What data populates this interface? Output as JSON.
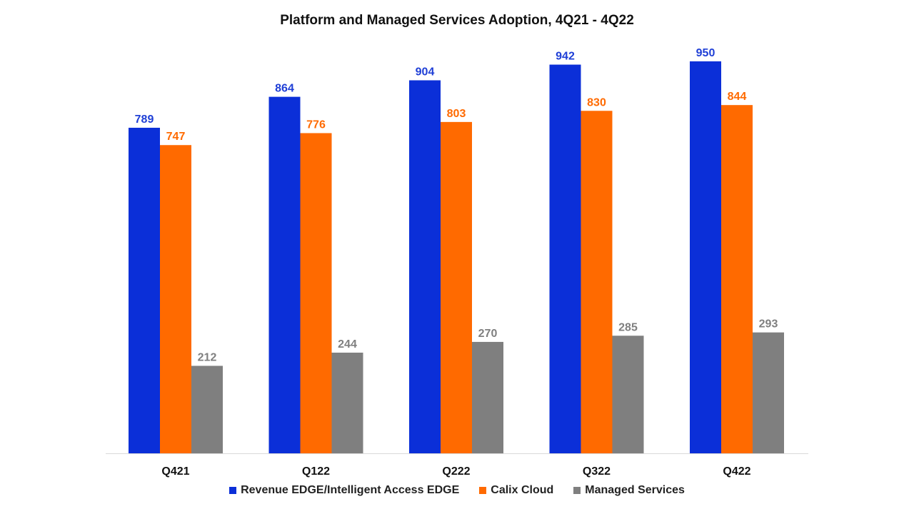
{
  "chart_data": {
    "type": "bar",
    "title": "Platform and Managed Services Adoption, 4Q21 - 4Q22",
    "xlabel": "",
    "ylabel": "",
    "categories": [
      "Q421",
      "Q122",
      "Q222",
      "Q322",
      "Q422"
    ],
    "series": [
      {
        "name": "Revenue EDGE/Intelligent Access EDGE",
        "color": "#0b2fd8",
        "label_color": "#1f3fd6",
        "values": [
          789,
          864,
          904,
          942,
          950
        ]
      },
      {
        "name": "Calix Cloud",
        "color": "#ff6a00",
        "label_color": "#ff6a00",
        "values": [
          747,
          776,
          803,
          830,
          844
        ]
      },
      {
        "name": "Managed Services",
        "color": "#7f7f7f",
        "label_color": "#7f7f7f",
        "values": [
          212,
          244,
          270,
          285,
          293
        ]
      }
    ],
    "ylim": [
      0,
      1000
    ],
    "grid": false,
    "legend_position": "bottom"
  }
}
